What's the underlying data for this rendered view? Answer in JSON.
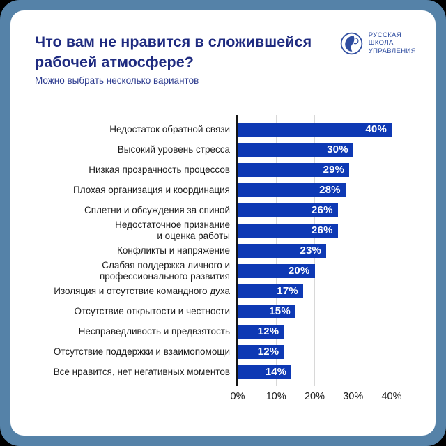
{
  "header": {
    "title": "Что вам не нравится в сложившейся\nрабочей атмосфере?",
    "subtitle": "Можно выбрать несколько вариантов",
    "logo": {
      "lines": [
        "РУССКАЯ",
        "ШКОЛА",
        "УПРАВЛЕНИЯ"
      ]
    }
  },
  "colors": {
    "outer_background": "#000000",
    "frame": "#5582a8",
    "card": "#ffffff",
    "title_text": "#1f2b80",
    "subtitle_text": "#2b3a8e",
    "logo_blue": "#2f4da0",
    "category_text": "#1c1c1c",
    "value_text": "#ffffff",
    "gridline": "#d8d8d8",
    "axis": "#151515"
  },
  "chart_data": {
    "type": "bar",
    "orientation": "horizontal",
    "title": "Что вам не нравится в сложившейся рабочей атмосфере?",
    "subtitle": "Можно выбрать несколько вариантов",
    "categories": [
      "Недостаток обратной связи",
      "Высокий уровень стресса",
      "Низкая прозрачность процессов",
      "Плохая организация и координация",
      "Сплетни и обсуждения за спиной",
      "Недостаточное признание\nи оценка работы",
      "Конфликты и напряжение",
      "Слабая поддержка личного и\nпрофессионального развития",
      "Изоляция и отсутствие командного духа",
      "Отсутствие открытости и честности",
      "Несправедливость и предвзятость",
      "Отсутствие поддержки и взаимопомощи",
      "Все нравится, нет негативных моментов"
    ],
    "values": [
      40,
      30,
      29,
      28,
      26,
      26,
      23,
      20,
      17,
      15,
      12,
      12,
      14
    ],
    "value_labels": [
      "40%",
      "30%",
      "29%",
      "28%",
      "26%",
      "26%",
      "23%",
      "20%",
      "17%",
      "15%",
      "12%",
      "12%",
      "14%"
    ],
    "x_ticks": [
      "0%",
      "10%",
      "20%",
      "30%",
      "40%"
    ],
    "xlim": [
      0,
      40
    ],
    "xlabel": "",
    "ylabel": "",
    "grid": true,
    "legend": false,
    "bar_color": "#0e39b4"
  }
}
